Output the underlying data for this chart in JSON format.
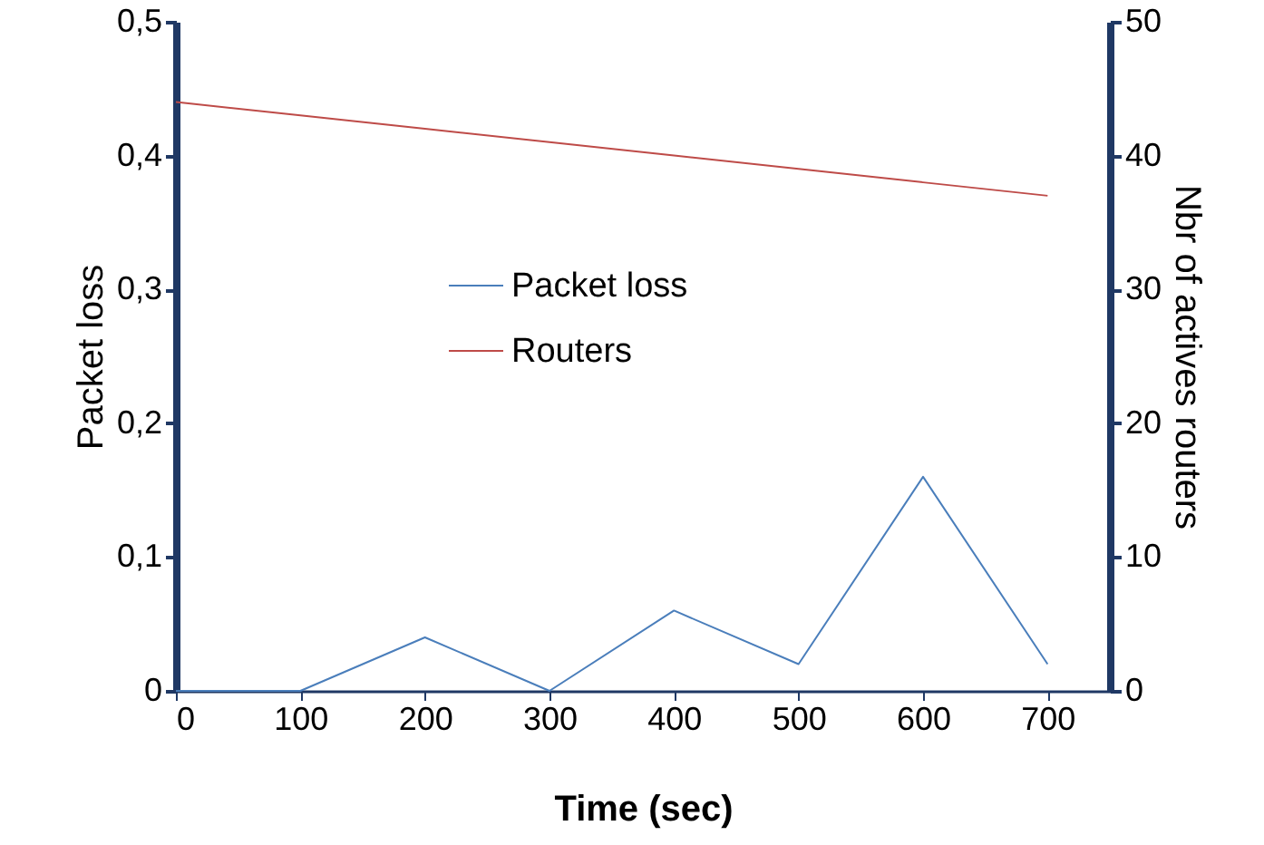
{
  "chart_data": {
    "type": "line",
    "xlabel": "Time (sec)",
    "ylabel": "Packet loss",
    "y2label": "Nbr of actives  routers",
    "x": [
      0,
      100,
      200,
      300,
      400,
      500,
      600,
      700
    ],
    "series": [
      {
        "name": "Packet loss",
        "color": "#4a7ebb",
        "values": [
          0,
          0,
          0.04,
          0,
          0.06,
          0.02,
          0.16,
          0.02
        ]
      },
      {
        "name": "Routers",
        "color": "#be4b48",
        "axis": "y2",
        "values": [
          44,
          43,
          42,
          41,
          40,
          39,
          38,
          37
        ]
      }
    ],
    "xlim": [
      0,
      750
    ],
    "xticks": [
      0,
      100,
      200,
      300,
      400,
      500,
      600,
      700
    ],
    "ylim": [
      0,
      0.5
    ],
    "yticks": [
      0,
      {
        "value": 0.1,
        "label": "0,1"
      },
      {
        "value": 0.2,
        "label": "0,2"
      },
      {
        "value": 0.3,
        "label": "0,3"
      },
      {
        "value": 0.4,
        "label": "0,4"
      },
      {
        "value": 0.5,
        "label": "0,5"
      }
    ],
    "y2lim": [
      0,
      50
    ],
    "y2ticks": [
      0,
      10,
      20,
      30,
      40,
      50
    ],
    "legend": "center",
    "grid": false
  }
}
